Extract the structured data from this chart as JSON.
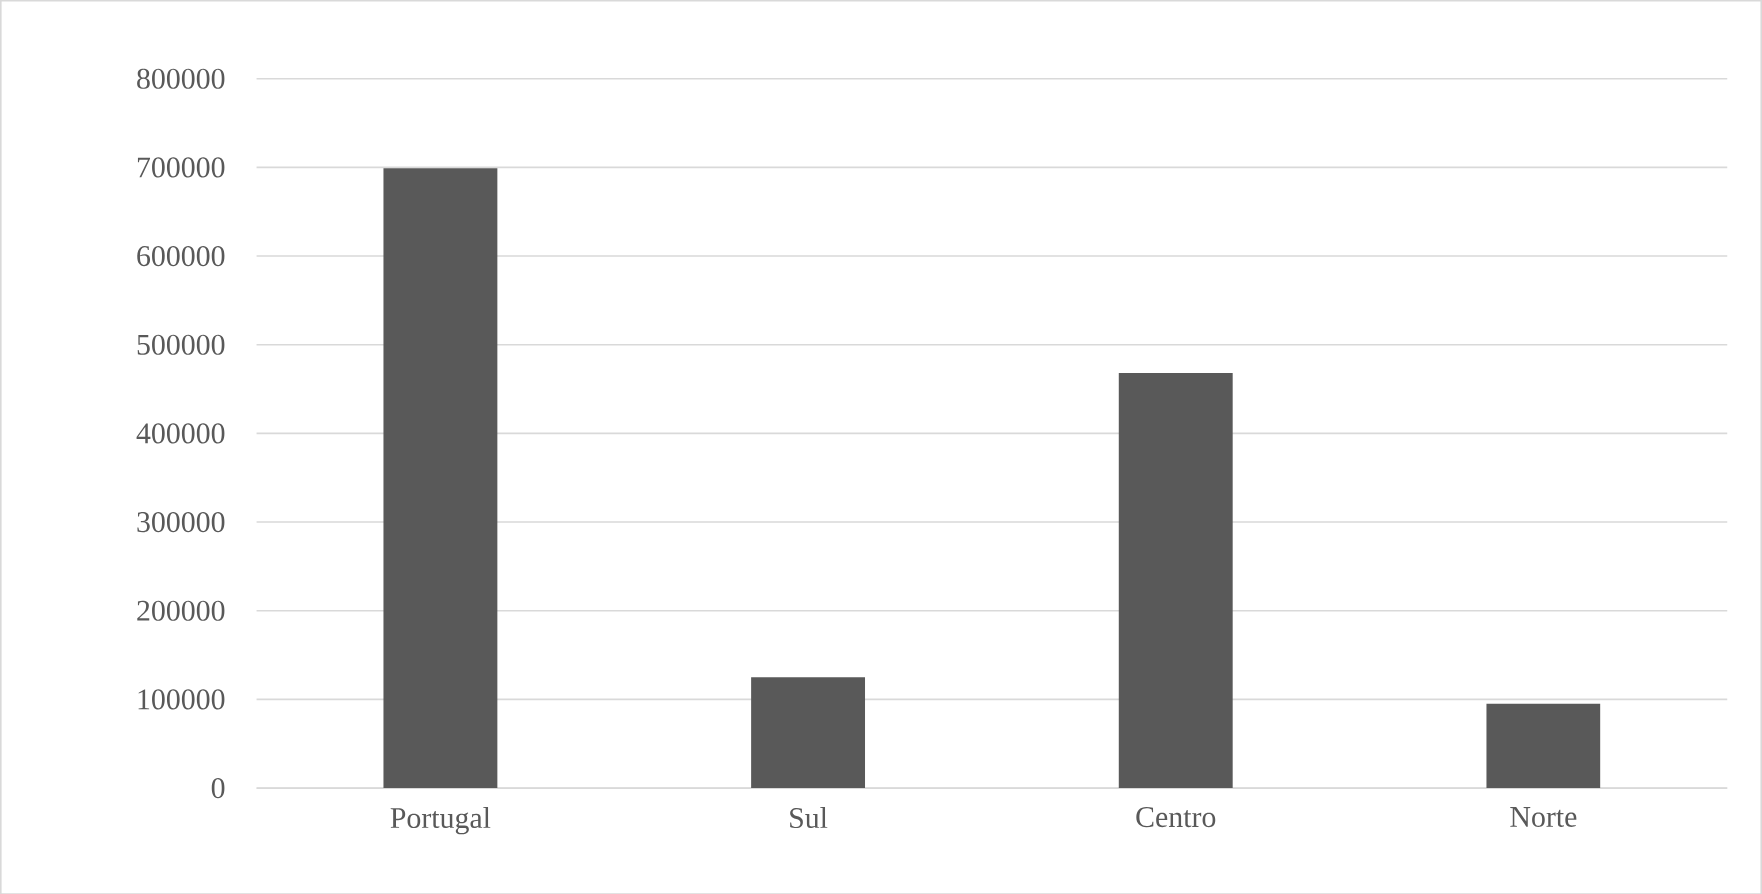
{
  "chart_data": {
    "type": "bar",
    "categories": [
      "Portugal",
      "Sul",
      "Centro",
      "Norte"
    ],
    "values": [
      699000,
      125000,
      468000,
      95000
    ],
    "color": "#595959",
    "ylim": [
      0,
      800000
    ],
    "yticks": [
      0,
      100000,
      200000,
      300000,
      400000,
      500000,
      600000,
      700000,
      800000
    ],
    "grid": "y"
  }
}
